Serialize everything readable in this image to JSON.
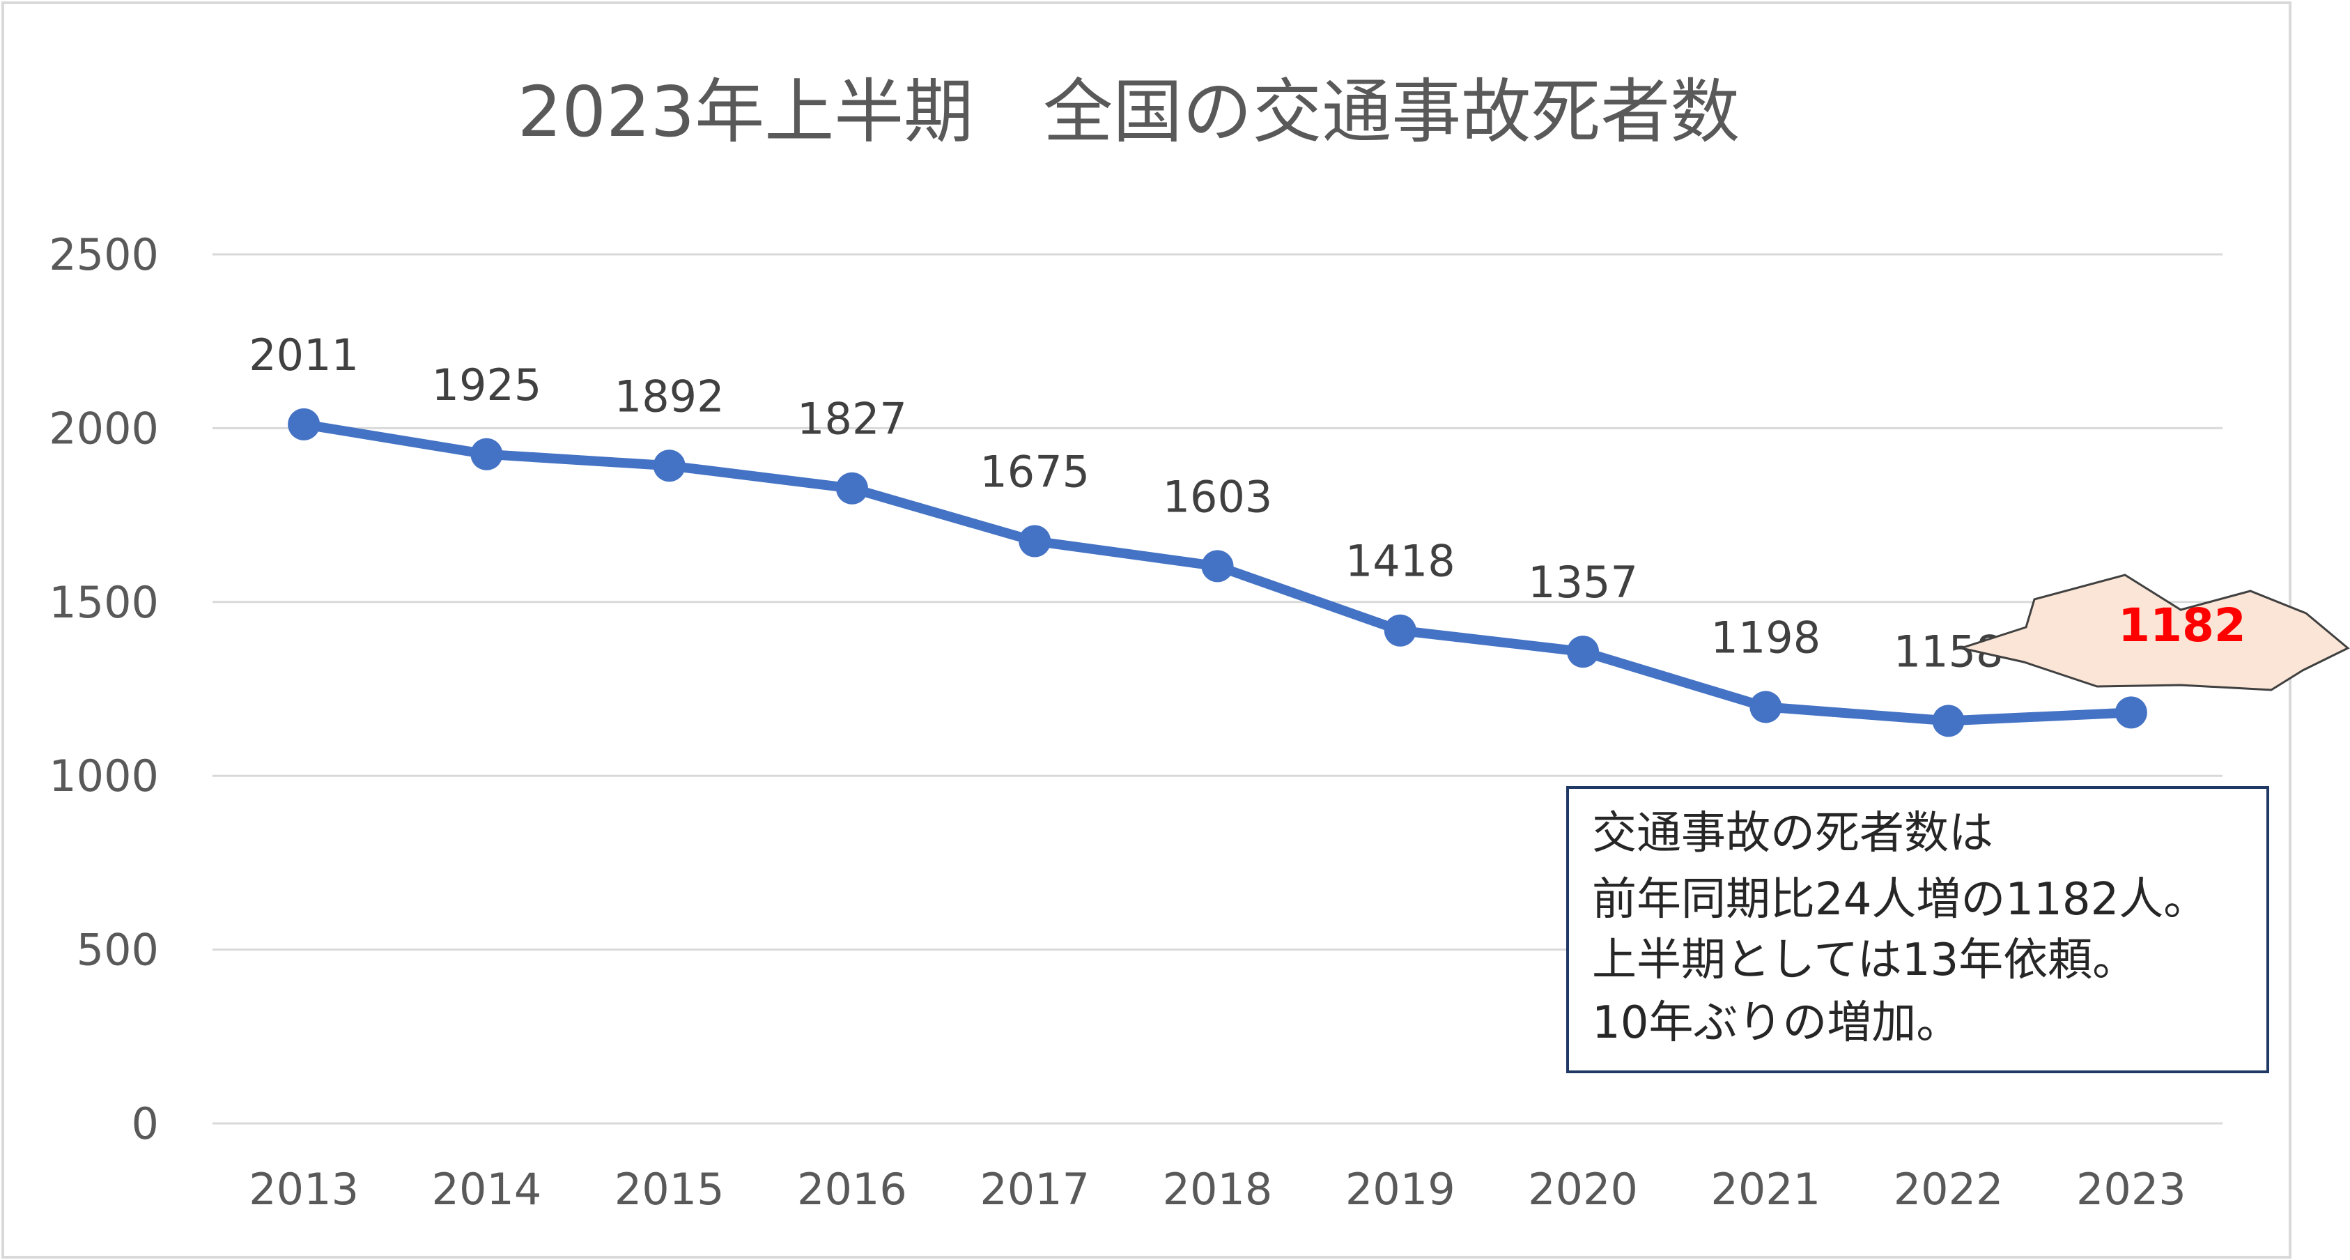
{
  "chart_data": {
    "type": "line",
    "title": "2023年上半期　全国の交通事故死者数",
    "xlabel": "",
    "ylabel": "",
    "categories": [
      "2013",
      "2014",
      "2015",
      "2016",
      "2017",
      "2018",
      "2019",
      "2020",
      "2021",
      "2022",
      "2023"
    ],
    "series": [
      {
        "values": [
          2011,
          1925,
          1892,
          1827,
          1675,
          1603,
          1418,
          1357,
          1198,
          1158,
          1182
        ]
      }
    ],
    "ylim": [
      0,
      2500
    ],
    "y_ticks": [
      0,
      500,
      1000,
      1500,
      2000,
      2500
    ],
    "grid": true,
    "legend": "none",
    "highlight_label": "1182",
    "annotation_lines": [
      "交通事故の死者数は",
      "前年同期比24人増の1182人。",
      "上半期としては13年依頼。",
      "10年ぶりの増加。"
    ]
  },
  "colors": {
    "line": "#4472C4",
    "grid": "#D9D9D9",
    "text": "#595959",
    "title": "#595959",
    "highlight_fill": "#FBE5D6",
    "highlight_text": "#FF0000",
    "annotation_border": "#1F3864"
  }
}
